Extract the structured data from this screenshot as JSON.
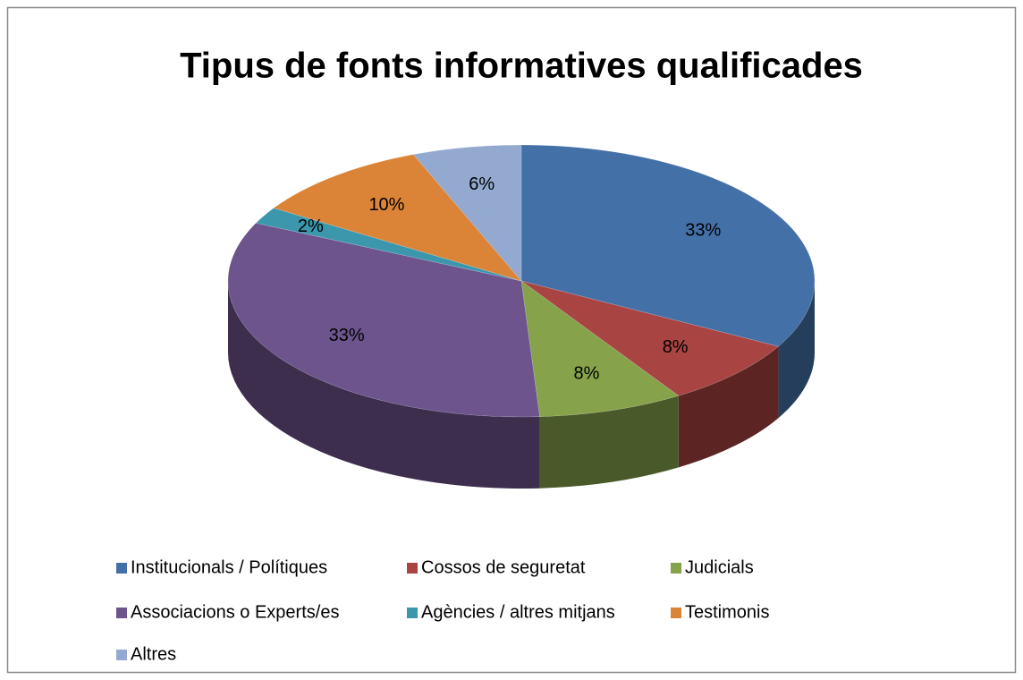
{
  "chart_data": {
    "type": "pie",
    "title": "Tipus de fonts informatives qualificades",
    "categories": [
      "Institucionals / Polítiques",
      "Cossos de seguretat",
      "Judicials",
      "Associacions o Experts/es",
      "Agències / altres mitjans",
      "Testimonis",
      "Altres"
    ],
    "values": [
      33,
      8,
      8,
      33,
      2,
      10,
      6
    ],
    "value_labels": [
      "33%",
      "8%",
      "8%",
      "33%",
      "2%",
      "10%",
      "6%"
    ],
    "colors": [
      "#4470a8",
      "#a84442",
      "#86a24b",
      "#6e548d",
      "#3c97ad",
      "#db8438",
      "#94a9cf"
    ],
    "legend": "bottom"
  }
}
